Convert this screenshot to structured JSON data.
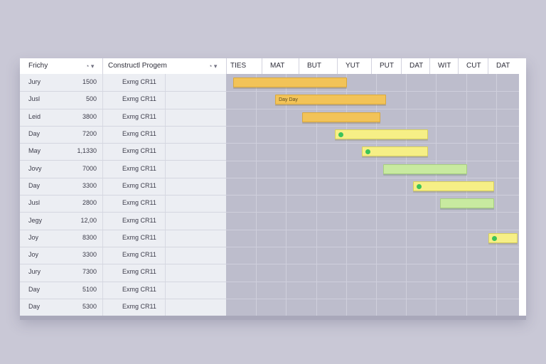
{
  "header": {
    "col_name": "Frichy",
    "col_progress": "Constructl Progem",
    "timeline": [
      "TIES",
      "MAT",
      "BUT",
      "YUT",
      "PUT",
      "DAT",
      "WIT",
      "CUT",
      "DAT"
    ]
  },
  "rows": [
    {
      "name": "Jury",
      "qty": "1500",
      "progress": "Exmg CR11"
    },
    {
      "name": "Jusl",
      "qty": "500",
      "progress": "Exmg CR11"
    },
    {
      "name": "Leid",
      "qty": "3800",
      "progress": "Exmg CR11"
    },
    {
      "name": "Day",
      "qty": "7200",
      "progress": "Exmg CR11"
    },
    {
      "name": "May",
      "qty": "1,1330",
      "progress": "Exmg CR11"
    },
    {
      "name": "Jovy",
      "qty": "7000",
      "progress": "Exmg CR11"
    },
    {
      "name": "Day",
      "qty": "3300",
      "progress": "Exmg CR11"
    },
    {
      "name": "Jusl",
      "qty": "2800",
      "progress": "Exmg CR11"
    },
    {
      "name": "Jegy",
      "qty": "12,00",
      "progress": "Exmg CR11"
    },
    {
      "name": "Joy",
      "qty": "8300",
      "progress": "Exmg CR11"
    },
    {
      "name": "Joy",
      "qty": "3300",
      "progress": "Exmg CR11"
    },
    {
      "name": "Jury",
      "qty": "7300",
      "progress": "Exmg CR11"
    },
    {
      "name": "Day",
      "qty": "5100",
      "progress": "Exmg CR11"
    },
    {
      "name": "Day",
      "qty": "5300",
      "progress": "Exmg CR11"
    }
  ],
  "bars": [
    {
      "row": 1,
      "start": 0.0,
      "end": 3.8,
      "color": "orange",
      "label": "",
      "dot": false
    },
    {
      "row": 2,
      "start": 1.4,
      "end": 5.1,
      "color": "orange",
      "label": "Day Day",
      "dot": false
    },
    {
      "row": 3,
      "start": 2.3,
      "end": 4.9,
      "color": "orange",
      "label": "",
      "dot": false
    },
    {
      "row": 4,
      "start": 3.4,
      "end": 6.5,
      "color": "yellow",
      "label": "",
      "dot": true
    },
    {
      "row": 5,
      "start": 4.3,
      "end": 6.5,
      "color": "yellow",
      "label": "",
      "dot": true
    },
    {
      "row": 6,
      "start": 5.0,
      "end": 7.8,
      "color": "green",
      "label": "",
      "dot": false
    },
    {
      "row": 7,
      "start": 6.0,
      "end": 8.7,
      "color": "yellow",
      "label": "",
      "dot": true
    },
    {
      "row": 8,
      "start": 6.9,
      "end": 8.7,
      "color": "green",
      "label": "",
      "dot": false
    },
    {
      "row": 10,
      "start": 8.5,
      "end": 9.8,
      "color": "yellow",
      "label": "",
      "dot": true
    }
  ],
  "icons": {
    "sort_left": "sort-icon",
    "sort_right": "sort-icon"
  }
}
